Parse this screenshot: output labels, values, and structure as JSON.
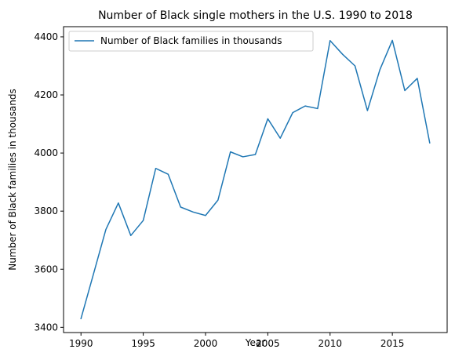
{
  "chart_data": {
    "type": "line",
    "title": "Number of Black single mothers in the U.S. 1990 to 2018",
    "xlabel": "Year",
    "ylabel": "Number of Black families in thousands",
    "xlim": [
      1988.6,
      2019.4
    ],
    "ylim": [
      3382,
      4435
    ],
    "xticks": [
      1990,
      1995,
      2000,
      2005,
      2010,
      2015
    ],
    "yticks": [
      3400,
      3600,
      3800,
      4000,
      4200,
      4400
    ],
    "grid": false,
    "legend_position": "top-left",
    "x": [
      1990,
      1991,
      1992,
      1993,
      1994,
      1995,
      1996,
      1997,
      1998,
      1999,
      2000,
      2001,
      2002,
      2003,
      2004,
      2005,
      2006,
      2007,
      2008,
      2009,
      2010,
      2011,
      2012,
      2013,
      2014,
      2015,
      2016,
      2017,
      2018
    ],
    "series": [
      {
        "name": "Number of Black families in thousands",
        "color": "#1f77b4",
        "values": [
          3430,
          3583,
          3737,
          3828,
          3716,
          3768,
          3947,
          3927,
          3814,
          3797,
          3785,
          3838,
          4004,
          3987,
          3995,
          4118,
          4051,
          4139,
          4162,
          4153,
          4387,
          4340,
          4300,
          4146,
          4287,
          4388,
          4215,
          4257,
          4035
        ]
      }
    ]
  }
}
